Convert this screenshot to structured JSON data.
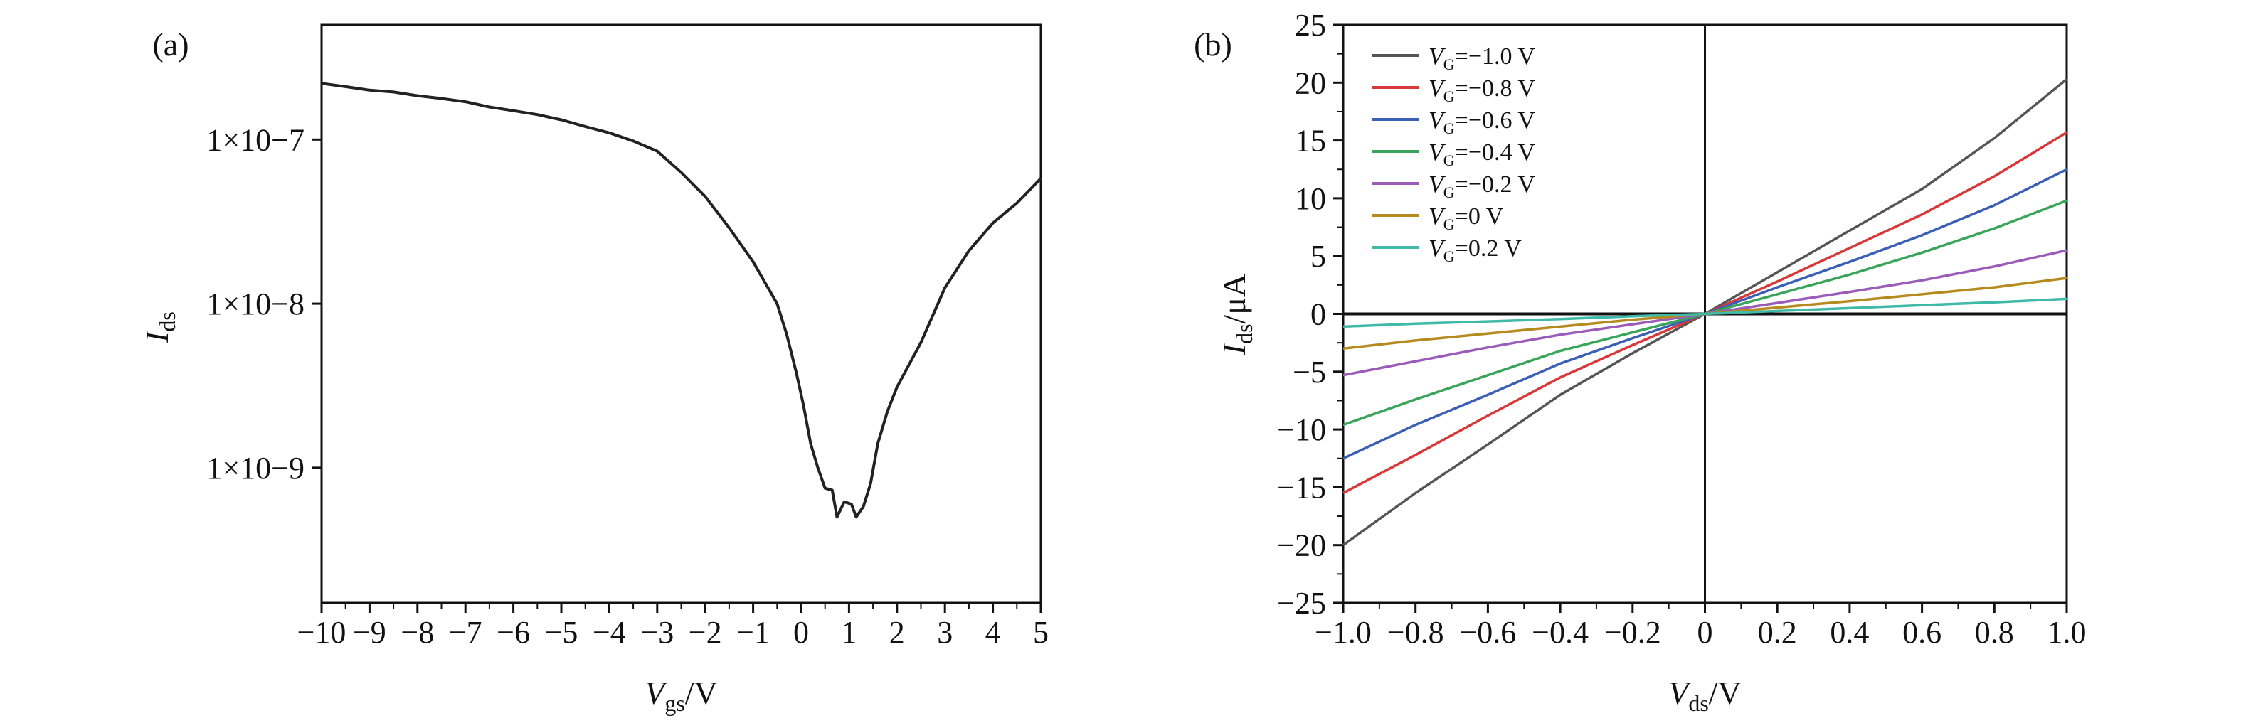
{
  "chart_data": [
    {
      "type": "line",
      "panel_label": "(a)",
      "xlabel": {
        "main": "V",
        "sub": "gs",
        "tail": "/V"
      },
      "ylabel": {
        "main": "I",
        "sub": "ds"
      },
      "xlim": [
        -10,
        5
      ],
      "x_ticks": [
        -10,
        -9,
        -8,
        -7,
        -6,
        -5,
        -4,
        -3,
        -2,
        -1,
        0,
        1,
        2,
        3,
        4,
        5
      ],
      "y_scale": "log",
      "ylim": [
        1.5e-10,
        5e-07
      ],
      "y_ticks": [
        {
          "value": 1e-09,
          "label": "1×10−9"
        },
        {
          "value": 1e-08,
          "label": "1×10−8"
        },
        {
          "value": 1e-07,
          "label": "1×10−7"
        }
      ],
      "series": [
        {
          "color": "#222222",
          "points": [
            [
              -10,
              2.2e-07
            ],
            [
              -9.5,
              2.1e-07
            ],
            [
              -9,
              2e-07
            ],
            [
              -8.5,
              1.95e-07
            ],
            [
              -8,
              1.85e-07
            ],
            [
              -7.5,
              1.78e-07
            ],
            [
              -7,
              1.7e-07
            ],
            [
              -6.5,
              1.58e-07
            ],
            [
              -6,
              1.5e-07
            ],
            [
              -5.5,
              1.42e-07
            ],
            [
              -5,
              1.32e-07
            ],
            [
              -4.5,
              1.2e-07
            ],
            [
              -4,
              1.1e-07
            ],
            [
              -3.5,
              9.8e-08
            ],
            [
              -3,
              8.5e-08
            ],
            [
              -2.5,
              6.3e-08
            ],
            [
              -2,
              4.5e-08
            ],
            [
              -1.5,
              2.9e-08
            ],
            [
              -1,
              1.8e-08
            ],
            [
              -0.5,
              1e-08
            ],
            [
              -0.3,
              6.5e-09
            ],
            [
              -0.1,
              3.8e-09
            ],
            [
              0.05,
              2.4e-09
            ],
            [
              0.2,
              1.4e-09
            ],
            [
              0.35,
              1e-09
            ],
            [
              0.5,
              7.5e-10
            ],
            [
              0.65,
              7.3e-10
            ],
            [
              0.75,
              5e-10
            ],
            [
              0.9,
              6.2e-10
            ],
            [
              1.05,
              6e-10
            ],
            [
              1.15,
              5e-10
            ],
            [
              1.3,
              5.8e-10
            ],
            [
              1.45,
              8e-10
            ],
            [
              1.6,
              1.4e-09
            ],
            [
              1.8,
              2.2e-09
            ],
            [
              2.0,
              3.1e-09
            ],
            [
              2.5,
              5.8e-09
            ],
            [
              3.0,
              1.25e-08
            ],
            [
              3.5,
              2.1e-08
            ],
            [
              4.0,
              3.1e-08
            ],
            [
              4.5,
              4.1e-08
            ],
            [
              5.0,
              5.8e-08
            ]
          ]
        }
      ]
    },
    {
      "type": "line",
      "panel_label": "(b)",
      "xlabel": {
        "main": "V",
        "sub": "ds",
        "tail": "/V"
      },
      "ylabel": {
        "main": "I",
        "sub": "ds",
        "tail": "/μA"
      },
      "xlim": [
        -1.0,
        1.0
      ],
      "x_ticks": [
        -1.0,
        -0.8,
        -0.6,
        -0.4,
        -0.2,
        0,
        0.2,
        0.4,
        0.6,
        0.8,
        1.0
      ],
      "x_tick_labels": [
        "−1.0",
        "−0.8",
        "−0.6",
        "−0.4",
        "−0.2",
        "0",
        "0.2",
        "0.4",
        "0.6",
        "0.8",
        "1.0"
      ],
      "ylim": [
        -25,
        25
      ],
      "y_ticks": [
        -25,
        -20,
        -15,
        -10,
        -5,
        0,
        5,
        10,
        15,
        20,
        25
      ],
      "y_tick_labels": [
        "−25",
        "−20",
        "−15",
        "−10",
        "−5",
        "0",
        "5",
        "10",
        "15",
        "20",
        "25"
      ],
      "legend_position": "top-left",
      "x": [
        -1.0,
        -0.8,
        -0.6,
        -0.4,
        -0.2,
        0,
        0.2,
        0.4,
        0.6,
        0.8,
        1.0
      ],
      "series": [
        {
          "name_main": "V",
          "name_sub": "G",
          "name_tail": "=−1.0 V",
          "color": "#555555",
          "values": [
            -20.0,
            -15.5,
            -11.3,
            -7.0,
            -3.4,
            0,
            3.6,
            7.2,
            10.8,
            15.2,
            20.3
          ]
        },
        {
          "name_main": "V",
          "name_sub": "G",
          "name_tail": "=−0.8 V",
          "color": "#d9383a",
          "values": [
            -15.5,
            -12.2,
            -8.8,
            -5.5,
            -2.7,
            0,
            2.8,
            5.7,
            8.6,
            11.9,
            15.7
          ]
        },
        {
          "name_main": "V",
          "name_sub": "G",
          "name_tail": "=−0.6 V",
          "color": "#3b5fb5",
          "values": [
            -12.5,
            -9.6,
            -7.0,
            -4.3,
            -2.1,
            0,
            2.3,
            4.5,
            6.8,
            9.4,
            12.5
          ]
        },
        {
          "name_main": "V",
          "name_sub": "G",
          "name_tail": "=−0.4 V",
          "color": "#3aa55a",
          "values": [
            -9.6,
            -7.4,
            -5.3,
            -3.2,
            -1.6,
            0,
            1.7,
            3.4,
            5.3,
            7.4,
            9.8
          ]
        },
        {
          "name_main": "V",
          "name_sub": "G",
          "name_tail": "=−0.2 V",
          "color": "#9a5cb8",
          "values": [
            -5.3,
            -4.1,
            -2.9,
            -1.8,
            -0.9,
            0,
            0.95,
            1.9,
            2.9,
            4.1,
            5.5
          ]
        },
        {
          "name_main": "V",
          "name_sub": "G",
          "name_tail": "=0 V",
          "color": "#b58a1e",
          "values": [
            -3.0,
            -2.3,
            -1.7,
            -1.1,
            -0.5,
            0,
            0.55,
            1.1,
            1.7,
            2.3,
            3.1
          ]
        },
        {
          "name_main": "V",
          "name_sub": "G",
          "name_tail": "=0.2 V",
          "color": "#3fb9a8",
          "values": [
            -1.1,
            -0.85,
            -0.65,
            -0.45,
            -0.2,
            0,
            0.25,
            0.5,
            0.75,
            1.0,
            1.3
          ]
        }
      ]
    }
  ]
}
